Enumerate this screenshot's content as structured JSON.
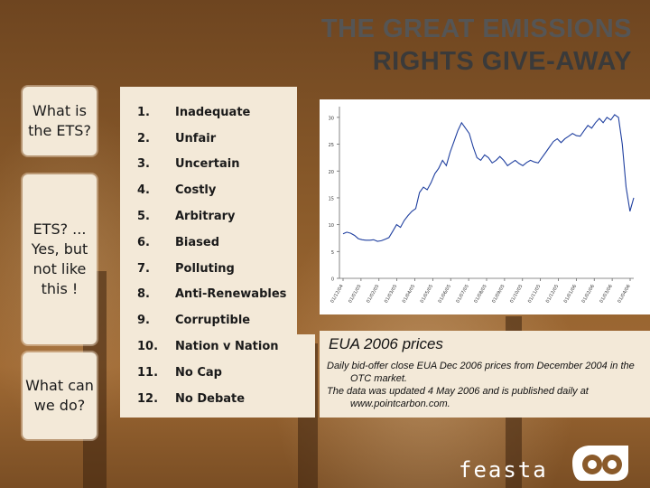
{
  "title": {
    "line1": "THE GREAT EMISSIONS",
    "line2": "RIGHTS GIVE-AWAY"
  },
  "sidebar": {
    "box1": "What is the ETS?",
    "box2": "ETS? ... Yes, but not like this !",
    "box3": "What can we do?"
  },
  "list": [
    {
      "num": "1.",
      "label": "Inadequate"
    },
    {
      "num": "2.",
      "label": "Unfair"
    },
    {
      "num": "3.",
      "label": "Uncertain"
    },
    {
      "num": "4.",
      "label": "Costly"
    },
    {
      "num": "5.",
      "label": "Arbitrary"
    },
    {
      "num": "6.",
      "label": "Biased"
    },
    {
      "num": "7.",
      "label": "Polluting"
    },
    {
      "num": "8.",
      "label": "Anti-Renewables"
    },
    {
      "num": "9.",
      "label": "Corruptible"
    },
    {
      "num": "10.",
      "label": "Nation v Nation"
    },
    {
      "num": "11.",
      "label": "No Cap"
    },
    {
      "num": "12.",
      "label": "No Debate"
    }
  ],
  "caption": {
    "heading": "EUA 2006 prices",
    "line1": "Daily bid-offer close EUA Dec 2006 prices from December 2004 in the OTC market.",
    "line2": "The data was updated 4 May 2006 and is published daily at www.pointcarbon.com."
  },
  "logo": {
    "text": "feasta"
  },
  "chart_data": {
    "type": "line",
    "ylim": [
      0,
      32
    ],
    "y_ticks": [
      0,
      5,
      10,
      15,
      20,
      25,
      30
    ],
    "x_ticks": [
      "01/12/04",
      "01/01/05",
      "01/02/05",
      "01/03/05",
      "01/04/05",
      "01/05/05",
      "01/06/05",
      "01/07/05",
      "01/08/05",
      "01/09/05",
      "01/10/05",
      "01/11/05",
      "01/12/05",
      "01/01/06",
      "01/02/06",
      "01/03/06",
      "01/04/06"
    ],
    "series": [
      {
        "values": [
          8.3,
          8.6,
          8.4,
          8.0,
          7.4,
          7.2,
          7.1,
          7.1,
          7.2,
          6.9,
          7.0,
          7.3,
          7.6,
          8.8,
          10.0,
          9.5,
          10.8,
          11.7,
          12.5,
          13.0,
          16.0,
          17.0,
          16.5,
          17.8,
          19.5,
          20.5,
          22.0,
          21.0,
          23.5,
          25.5,
          27.5,
          29.0,
          28.0,
          27.0,
          24.5,
          22.5,
          22.0,
          23.0,
          22.5,
          21.5,
          22.0,
          22.7,
          22.0,
          21.0,
          21.5,
          22.0,
          21.4,
          21.0,
          21.6,
          22.0,
          21.7,
          21.5,
          22.5,
          23.5,
          24.5,
          25.5,
          26.0,
          25.3,
          26.0,
          26.5,
          27.0,
          26.6,
          26.5,
          27.5,
          28.5,
          28.0,
          29.0,
          29.8,
          29.0,
          30.0,
          29.5,
          30.5,
          30.0,
          25.0,
          17.0,
          12.5,
          15.0
        ]
      }
    ]
  }
}
